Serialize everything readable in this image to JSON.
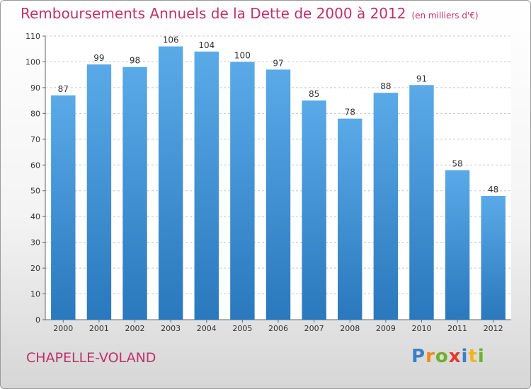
{
  "chart_data": {
    "type": "bar",
    "title": "Remboursements Annuels de la Dette de 2000 à 2012",
    "unit_label": "(en milliers d'€)",
    "categories": [
      "2000",
      "2001",
      "2002",
      "2003",
      "2004",
      "2005",
      "2006",
      "2007",
      "2008",
      "2009",
      "2010",
      "2011",
      "2012"
    ],
    "values": [
      87,
      99,
      98,
      106,
      104,
      100,
      97,
      85,
      78,
      88,
      91,
      58,
      48
    ],
    "ylim": [
      0,
      110
    ],
    "yticks": [
      0,
      10,
      20,
      30,
      40,
      50,
      60,
      70,
      80,
      90,
      100,
      110
    ],
    "grid": true,
    "bar_color_top": "#5aaae8",
    "bar_color_bottom": "#2a78bd"
  },
  "commune": "CHAPELLE-VOLAND",
  "logo": {
    "letters": [
      "P",
      "r",
      "o",
      "x",
      "i",
      "t",
      "i"
    ]
  }
}
